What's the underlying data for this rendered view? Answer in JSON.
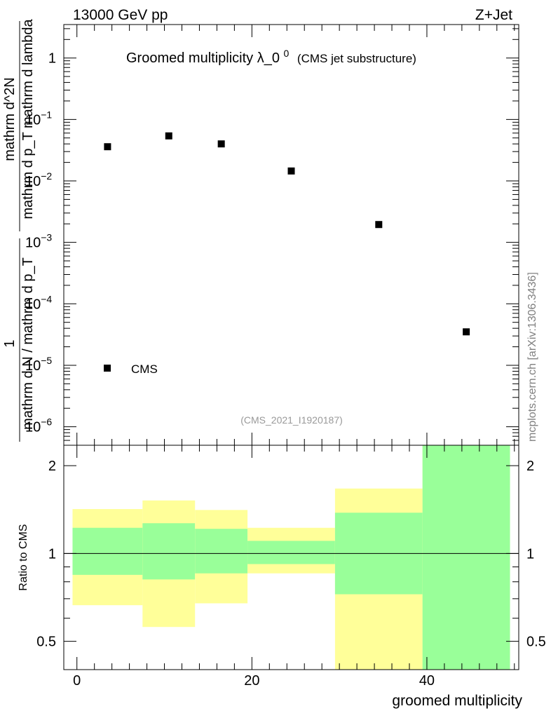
{
  "header": {
    "energy": "13000 GeV pp",
    "process": "Z+Jet"
  },
  "watermark": "mcplots.cern.ch [arXiv:1306.3436]",
  "chart_data": [
    {
      "type": "scatter",
      "title": "Groomed multiplicity",
      "title_symbol": "λ_0",
      "title_superscript": "0",
      "subtitle": "(CMS jet substructure)",
      "analysis_id": "(CMS_2021_I1920187)",
      "ylabel": {
        "numerator": "1",
        "denominator": "mathrm d N / mathrm d p_T",
        "right": "mathrm d^2N",
        "right_den": "mathrm d p_T mathrm d lambda"
      },
      "yscale": "log",
      "ylim": [
        5e-07,
        3.5
      ],
      "xlim": [
        -1.5,
        50.5
      ],
      "y_ticks": [
        {
          "value": 1,
          "label": "1",
          "sup": ""
        },
        {
          "value": 0.1,
          "label": "10",
          "sup": "−1"
        },
        {
          "value": 0.01,
          "label": "10",
          "sup": "−2"
        },
        {
          "value": 0.001,
          "label": "10",
          "sup": "−3"
        },
        {
          "value": 0.0001,
          "label": "10",
          "sup": "−4"
        },
        {
          "value": 1e-05,
          "label": "10",
          "sup": "−5"
        },
        {
          "value": 1e-06,
          "label": "10",
          "sup": "−6"
        }
      ],
      "series": [
        {
          "name": "CMS",
          "color": "#000000",
          "x": [
            3.5,
            10.5,
            16.5,
            24.5,
            34.5,
            44.5
          ],
          "y": [
            0.036,
            0.054,
            0.04,
            0.0145,
            0.00195,
            3.5e-05
          ]
        }
      ],
      "legend": "bottom-left"
    },
    {
      "type": "area",
      "ylabel": "Ratio to CMS",
      "xlabel": "groomed multiplicity",
      "yscale": "log",
      "ylim": [
        0.4,
        2.35
      ],
      "xlim": [
        -1.5,
        50.5
      ],
      "x_ticks": [
        0,
        20,
        40
      ],
      "y_ticks": [
        {
          "value": 0.5,
          "label": "0.5"
        },
        {
          "value": 1,
          "label": "1"
        },
        {
          "value": 2,
          "label": "2"
        }
      ],
      "reference_line": 1,
      "bands": {
        "colors": {
          "outer": "#ffff99",
          "inner": "#99ff99"
        },
        "bins": [
          {
            "x0": -0.5,
            "x1": 7.5,
            "outer": [
              0.665,
              1.42
            ],
            "inner": [
              0.845,
              1.225
            ]
          },
          {
            "x0": 7.5,
            "x1": 13.5,
            "outer": [
              0.56,
              1.52
            ],
            "inner": [
              0.815,
              1.27
            ]
          },
          {
            "x0": 13.5,
            "x1": 19.5,
            "outer": [
              0.675,
              1.41
            ],
            "inner": [
              0.855,
              1.215
            ]
          },
          {
            "x0": 19.5,
            "x1": 29.5,
            "outer": [
              0.855,
              1.225
            ],
            "inner": [
              0.92,
              1.105
            ]
          },
          {
            "x0": 29.5,
            "x1": 39.5,
            "outer": [
              0.35,
              1.67
            ],
            "inner": [
              0.725,
              1.38
            ]
          },
          {
            "x0": 39.5,
            "x1": 49.5,
            "outer": [
              0.35,
              2.35
            ],
            "inner": [
              0.35,
              2.35
            ]
          }
        ]
      }
    }
  ]
}
